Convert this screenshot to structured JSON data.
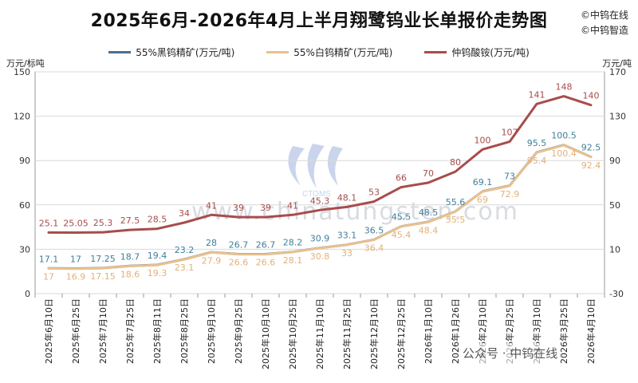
{
  "title": "2025年6月-2026年4月上半月翔鹭钨业长单报价走势图",
  "brand": [
    "©中钨在线",
    "©中钨智造"
  ],
  "watermark": "www.chinatungsten.com",
  "watermark_logo": "CTOMS",
  "wechat": "公众号 · 中钨在线",
  "axis_units": {
    "left": "万元/标吨",
    "right": "万元/吨"
  },
  "chart_data": {
    "type": "line",
    "title": "2025年6月-2026年4月上半月翔鹭钨业长单报价走势图",
    "categories": [
      "2025年6月10日",
      "2025年6月25日",
      "2025年7月10日",
      "2025年7月25日",
      "2025年8月11日",
      "2025年8月25日",
      "2025年9月10日",
      "2025年9月25日",
      "2025年10月10日",
      "2025年10月25日",
      "2025年11月10日",
      "2025年11月25日",
      "2025年12月10日",
      "2025年12月25日",
      "2026年1月10日",
      "2026年1月26日",
      "2026年2月10日",
      "2026年2月25日",
      "2026年3月10日",
      "2026年3月25日",
      "2026年4月10日"
    ],
    "left_axis": {
      "min": 0,
      "max": 150,
      "ticks": [
        0,
        30,
        60,
        90,
        120,
        150
      ]
    },
    "right_axis": {
      "min": -30,
      "max": 170,
      "ticks": [
        -30,
        10,
        50,
        90,
        130,
        170
      ]
    },
    "grid": true,
    "legend_position": "top",
    "series": [
      {
        "name": "55%黑钨精矿(万元/吨)",
        "axis": "left",
        "color": "#4a6f8f",
        "label_color": "#3f7f9a",
        "values": [
          17.1,
          17,
          17.25,
          18.7,
          19.4,
          23.2,
          28,
          26.7,
          26.7,
          28.2,
          30.9,
          33.1,
          36.5,
          45.5,
          48.5,
          55.6,
          69.1,
          73,
          95.5,
          100.5,
          92.5
        ],
        "labels": [
          "17.1",
          "17",
          "17.25",
          "18.7",
          "19.4",
          "23.2",
          "28",
          "26.7",
          "26.7",
          "28.2",
          "30.9",
          "33.1",
          "36.5",
          "45.5",
          "48.5",
          "55.6",
          "69.1",
          "73",
          "95.5",
          "100.5",
          "92.5"
        ]
      },
      {
        "name": "55%白钨精矿(万元/吨)",
        "axis": "left",
        "color": "#e8c18f",
        "label_color": "#e3b07a",
        "values": [
          17,
          16.9,
          17.15,
          18.6,
          19.3,
          23.1,
          27.9,
          26.6,
          26.6,
          28.1,
          30.8,
          33,
          36.4,
          45.4,
          48.4,
          55.5,
          69,
          72.9,
          95.4,
          100.4,
          92.4
        ],
        "labels": [
          "17",
          "16.9",
          "17.15",
          "18.6",
          "19.3",
          "23.1",
          "27.9",
          "26.6",
          "26.6",
          "28.1",
          "30.8",
          "33",
          "36.4",
          "45.4",
          "48.4",
          "55.5",
          "69",
          "72.9",
          "95.4",
          "100.4",
          "92.4"
        ]
      },
      {
        "name": "仲钨酸铵(万元/吨)",
        "axis": "right",
        "color": "#a84c4c",
        "label_color": "#a84c4c",
        "values": [
          25.1,
          25.05,
          25.3,
          27.5,
          28.5,
          34,
          41,
          39,
          39,
          41,
          45.3,
          48.1,
          53,
          66,
          70,
          80,
          100,
          107,
          141,
          148,
          140
        ],
        "labels": [
          "25.1",
          "25.05",
          "25.3",
          "27.5",
          "28.5",
          "34",
          "41",
          "39",
          "39",
          "41",
          "45.3",
          "48.1",
          "53",
          "66",
          "70",
          "80",
          "100",
          "107",
          "141",
          "148",
          "140"
        ]
      }
    ]
  }
}
